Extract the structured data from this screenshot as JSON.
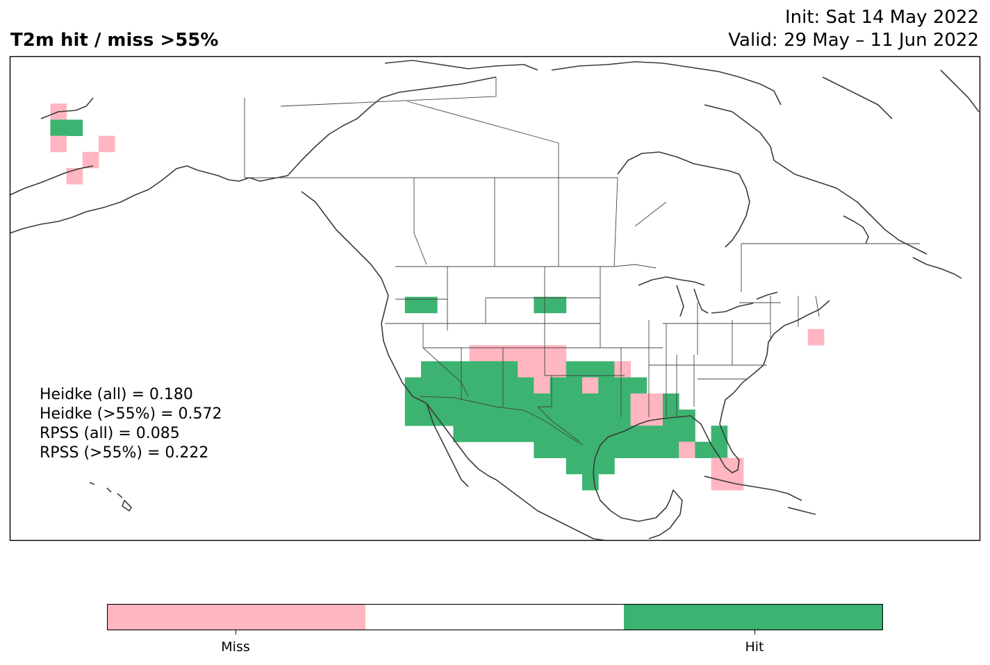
{
  "header": {
    "title": "T2m hit / miss  >55%",
    "init": "Init: Sat 14 May 2022",
    "valid": "Valid: 29 May – 11 Jun 2022"
  },
  "scores": [
    "Heidke (all) = 0.180",
    "Heidke (>55%) = 0.572",
    "RPSS (all) = 0.085",
    "RPSS (>55%) = 0.222"
  ],
  "colorbar": {
    "categories": [
      "Miss",
      "",
      "Hit"
    ],
    "colors": [
      "#ffb6c1",
      "#ffffff",
      "#3cb371"
    ],
    "tick_labels": [
      "Miss",
      "Hit"
    ]
  },
  "colors": {
    "miss": "#ffb6c1",
    "hit": "#3cb371",
    "coast": "#3a3a3a",
    "frame": "#000000"
  }
}
